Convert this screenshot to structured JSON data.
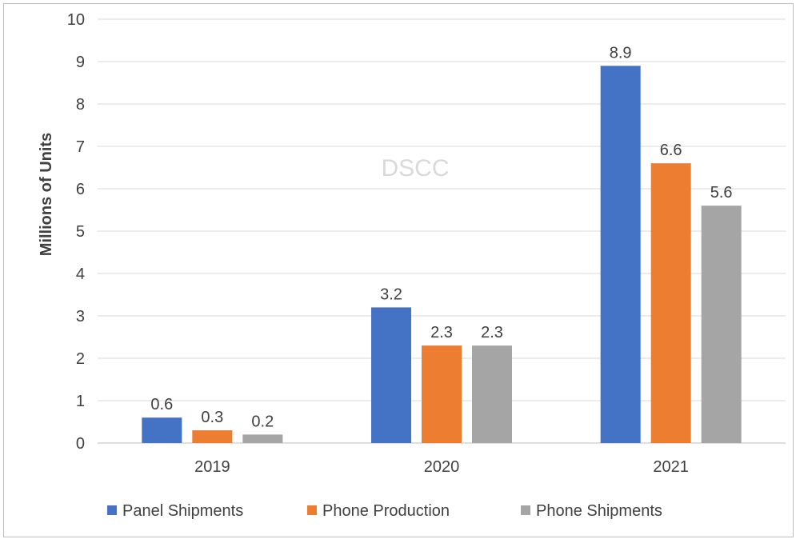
{
  "chart_data": {
    "type": "bar",
    "categories": [
      "2019",
      "2020",
      "2021"
    ],
    "series": [
      {
        "name": "Panel Shipments",
        "values": [
          0.6,
          3.2,
          8.9
        ],
        "labels": [
          "0.6",
          "3.2",
          "8.9"
        ],
        "color": "#4472c4"
      },
      {
        "name": "Phone Production",
        "values": [
          0.3,
          2.3,
          6.6
        ],
        "labels": [
          "0.3",
          "2.3",
          "6.6"
        ],
        "color": "#ed7d31"
      },
      {
        "name": "Phone Shipments",
        "values": [
          0.2,
          2.3,
          5.6
        ],
        "labels": [
          "0.2",
          "2.3",
          "5.6"
        ],
        "color": "#a5a5a5"
      }
    ],
    "title": "",
    "xlabel": "",
    "ylabel": "Millions of Units",
    "ylim": [
      0,
      10
    ],
    "yticks": [
      "0",
      "1",
      "2",
      "3",
      "4",
      "5",
      "6",
      "7",
      "8",
      "9",
      "10"
    ],
    "grid": true,
    "legend": "bottom",
    "watermark": "DSCC"
  }
}
